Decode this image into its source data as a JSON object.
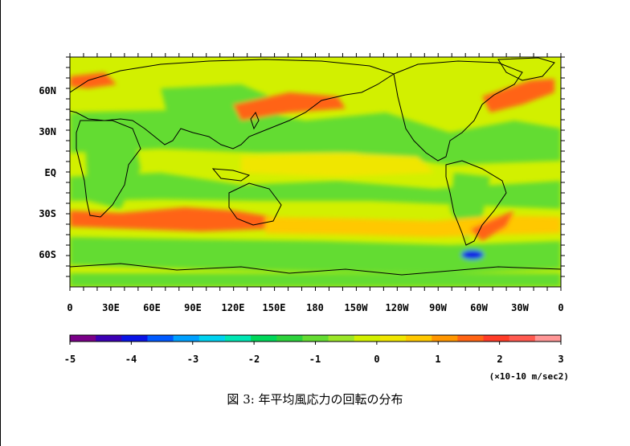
{
  "map": {
    "lat_labels": [
      "60N",
      "30N",
      "EQ",
      "30S",
      "60S"
    ],
    "lon_labels": [
      "0",
      "30E",
      "60E",
      "90E",
      "120E",
      "150E",
      "180",
      "150W",
      "120W",
      "90W",
      "60W",
      "30W",
      "0"
    ]
  },
  "colorbar": {
    "min": -5,
    "max": 3,
    "tick_labels": [
      "-5",
      "-4",
      "-3",
      "-2",
      "-1",
      "0",
      "1",
      "2",
      "3"
    ],
    "colors": [
      "#7a0088",
      "#3c00b4",
      "#0a14e6",
      "#005aff",
      "#00a0ff",
      "#00d2f0",
      "#00e6b4",
      "#00d75a",
      "#2dd23c",
      "#64dc32",
      "#9be628",
      "#d2f000",
      "#f0e600",
      "#ffc800",
      "#ff9600",
      "#ff6414",
      "#ff3c28",
      "#ff5a50",
      "#ff9696"
    ],
    "units": "(×10-10 m/sec2)"
  },
  "caption": "図 3: 年平均風応力の回転の分布"
}
